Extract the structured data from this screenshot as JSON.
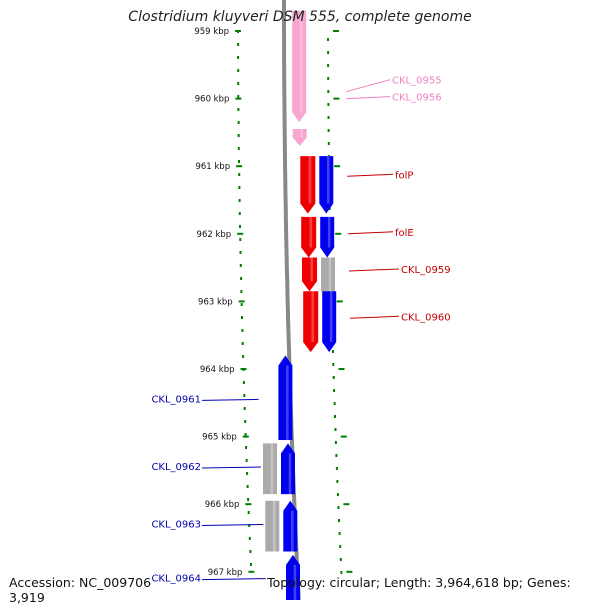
{
  "title": "Clostridium kluyveri DSM 555, complete genome",
  "footer": {
    "accession": "Accession: NC_009706",
    "info": "Topology: circular; Length: 3,964,618 bp; Genes: 3,919"
  },
  "colors": {
    "pink": "#f7a6cf",
    "red": "#ee0000",
    "blue": "#0000ee",
    "gray": "#aaaaaa",
    "tick": "#008000",
    "label_pink": "#f080c0",
    "label_red": "#c80000",
    "label_blue": "#0000b0"
  },
  "ticks": [
    {
      "label": "959 kbp",
      "kbp": 959
    },
    {
      "label": "960 kbp",
      "kbp": 960
    },
    {
      "label": "961 kbp",
      "kbp": 961
    },
    {
      "label": "962 kbp",
      "kbp": 962
    },
    {
      "label": "963 kbp",
      "kbp": 963
    },
    {
      "label": "964 kbp",
      "kbp": 964
    },
    {
      "label": "965 kbp",
      "kbp": 965
    },
    {
      "label": "966 kbp",
      "kbp": 966
    },
    {
      "label": "967 kbp",
      "kbp": 967
    }
  ],
  "genes": [
    {
      "name": "CKL_0955",
      "start": 958.7,
      "end": 960.35,
      "ring": "pink",
      "color": "pink",
      "labelColor": "label_pink",
      "side": "right",
      "labelKbp": 959.75,
      "dir": "down"
    },
    {
      "name": "CKL_0956",
      "start": 960.45,
      "end": 960.7,
      "ring": "pink",
      "color": "pink",
      "labelColor": "label_pink",
      "side": "right",
      "labelKbp": 960.0,
      "dir": "down"
    },
    {
      "name": "folP",
      "start": 960.85,
      "end": 961.7,
      "ring": "red",
      "color": "red",
      "labelColor": "label_red",
      "side": "right",
      "labelKbp": 961.15,
      "dir": "down"
    },
    {
      "name": "folE",
      "start": 961.75,
      "end": 962.35,
      "ring": "red",
      "color": "red",
      "labelColor": "label_red",
      "side": "right",
      "labelKbp": 962.0,
      "dir": "down"
    },
    {
      "name": "CKL_0959",
      "start": 962.35,
      "end": 962.85,
      "ring": "red",
      "color": "red",
      "labelColor": "label_red",
      "side": "right",
      "labelKbp": 962.55,
      "dir": "down"
    },
    {
      "name": "CKL_0960",
      "start": 962.85,
      "end": 963.75,
      "ring": "red",
      "color": "red",
      "labelColor": "label_red",
      "side": "right",
      "labelKbp": 963.25,
      "dir": "down"
    },
    {
      "name": "CKL_0961",
      "start": 963.8,
      "end": 965.05,
      "ring": "inner",
      "color": "blue",
      "labelColor": "label_blue",
      "side": "left",
      "labelKbp": 964.45,
      "dir": "up"
    },
    {
      "name": "CKL_0962",
      "start": 965.1,
      "end": 965.85,
      "ring": "inner",
      "color": "blue",
      "labelColor": "label_blue",
      "side": "left",
      "labelKbp": 965.45,
      "dir": "up"
    },
    {
      "name": "CKL_0963",
      "start": 965.95,
      "end": 966.7,
      "ring": "inner",
      "color": "blue",
      "labelColor": "label_blue",
      "side": "left",
      "labelKbp": 966.3,
      "dir": "up"
    },
    {
      "name": "CKL_0964",
      "start": 966.75,
      "end": 967.6,
      "ring": "inner",
      "color": "blue",
      "labelColor": "label_blue",
      "side": "left",
      "labelKbp": 967.1,
      "dir": "up"
    }
  ],
  "cog_bars": [
    {
      "start": 960.85,
      "end": 961.7,
      "color": "blue"
    },
    {
      "start": 961.75,
      "end": 962.35,
      "color": "blue"
    },
    {
      "start": 962.35,
      "end": 962.85,
      "color": "gray"
    },
    {
      "start": 962.85,
      "end": 963.75,
      "color": "blue"
    },
    {
      "start": 965.1,
      "end": 965.85,
      "color": "gray"
    },
    {
      "start": 965.95,
      "end": 966.7,
      "color": "gray"
    }
  ]
}
